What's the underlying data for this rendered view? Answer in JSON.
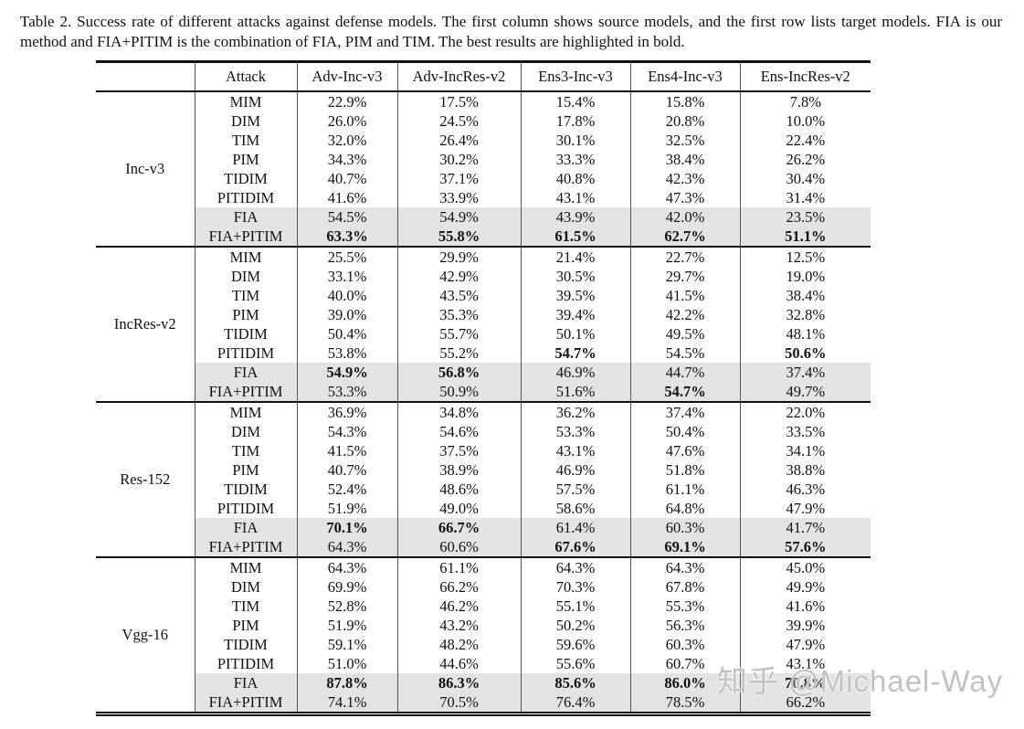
{
  "caption": "Table 2. Success rate of different attacks against defense models.  The first column shows source models, and the first row lists target models. FIA is our method and FIA+PITIM is the combination of FIA, PIM and TIM. The best results are highlighted in bold.",
  "watermark": "知乎 @Michael-Way",
  "colors": {
    "highlight_row": "#e3e3e3",
    "rule": "#111111",
    "text": "#111111",
    "watermark": "#bbbbbb"
  },
  "table": {
    "columns": [
      "",
      "Attack",
      "Adv-Inc-v3",
      "Adv-IncRes-v2",
      "Ens3-Inc-v3",
      "Ens4-Inc-v3",
      "Ens-IncRes-v2"
    ],
    "groups": [
      {
        "source": "Inc-v3",
        "rows": [
          {
            "attack": "MIM",
            "values": [
              "22.9%",
              "17.5%",
              "15.4%",
              "15.8%",
              "7.8%"
            ],
            "bold": [
              false,
              false,
              false,
              false,
              false
            ],
            "highlight": false
          },
          {
            "attack": "DIM",
            "values": [
              "26.0%",
              "24.5%",
              "17.8%",
              "20.8%",
              "10.0%"
            ],
            "bold": [
              false,
              false,
              false,
              false,
              false
            ],
            "highlight": false
          },
          {
            "attack": "TIM",
            "values": [
              "32.0%",
              "26.4%",
              "30.1%",
              "32.5%",
              "22.4%"
            ],
            "bold": [
              false,
              false,
              false,
              false,
              false
            ],
            "highlight": false
          },
          {
            "attack": "PIM",
            "values": [
              "34.3%",
              "30.2%",
              "33.3%",
              "38.4%",
              "26.2%"
            ],
            "bold": [
              false,
              false,
              false,
              false,
              false
            ],
            "highlight": false
          },
          {
            "attack": "TIDIM",
            "values": [
              "40.7%",
              "37.1%",
              "40.8%",
              "42.3%",
              "30.4%"
            ],
            "bold": [
              false,
              false,
              false,
              false,
              false
            ],
            "highlight": false
          },
          {
            "attack": "PITIDIM",
            "values": [
              "41.6%",
              "33.9%",
              "43.1%",
              "47.3%",
              "31.4%"
            ],
            "bold": [
              false,
              false,
              false,
              false,
              false
            ],
            "highlight": false
          },
          {
            "attack": "FIA",
            "values": [
              "54.5%",
              "54.9%",
              "43.9%",
              "42.0%",
              "23.5%"
            ],
            "bold": [
              false,
              false,
              false,
              false,
              false
            ],
            "highlight": true
          },
          {
            "attack": "FIA+PITIM",
            "values": [
              "63.3%",
              "55.8%",
              "61.5%",
              "62.7%",
              "51.1%"
            ],
            "bold": [
              true,
              true,
              true,
              true,
              true
            ],
            "highlight": true
          }
        ]
      },
      {
        "source": "IncRes-v2",
        "rows": [
          {
            "attack": "MIM",
            "values": [
              "25.5%",
              "29.9%",
              "21.4%",
              "22.7%",
              "12.5%"
            ],
            "bold": [
              false,
              false,
              false,
              false,
              false
            ],
            "highlight": false
          },
          {
            "attack": "DIM",
            "values": [
              "33.1%",
              "42.9%",
              "30.5%",
              "29.7%",
              "19.0%"
            ],
            "bold": [
              false,
              false,
              false,
              false,
              false
            ],
            "highlight": false
          },
          {
            "attack": "TIM",
            "values": [
              "40.0%",
              "43.5%",
              "39.5%",
              "41.5%",
              "38.4%"
            ],
            "bold": [
              false,
              false,
              false,
              false,
              false
            ],
            "highlight": false
          },
          {
            "attack": "PIM",
            "values": [
              "39.0%",
              "35.3%",
              "39.4%",
              "42.2%",
              "32.8%"
            ],
            "bold": [
              false,
              false,
              false,
              false,
              false
            ],
            "highlight": false
          },
          {
            "attack": "TIDIM",
            "values": [
              "50.4%",
              "55.7%",
              "50.1%",
              "49.5%",
              "48.1%"
            ],
            "bold": [
              false,
              false,
              false,
              false,
              false
            ],
            "highlight": false
          },
          {
            "attack": "PITIDIM",
            "values": [
              "53.8%",
              "55.2%",
              "54.7%",
              "54.5%",
              "50.6%"
            ],
            "bold": [
              false,
              false,
              true,
              false,
              true
            ],
            "highlight": false
          },
          {
            "attack": "FIA",
            "values": [
              "54.9%",
              "56.8%",
              "46.9%",
              "44.7%",
              "37.4%"
            ],
            "bold": [
              true,
              true,
              false,
              false,
              false
            ],
            "highlight": true
          },
          {
            "attack": "FIA+PITIM",
            "values": [
              "53.3%",
              "50.9%",
              "51.6%",
              "54.7%",
              "49.7%"
            ],
            "bold": [
              false,
              false,
              false,
              true,
              false
            ],
            "highlight": true
          }
        ]
      },
      {
        "source": "Res-152",
        "rows": [
          {
            "attack": "MIM",
            "values": [
              "36.9%",
              "34.8%",
              "36.2%",
              "37.4%",
              "22.0%"
            ],
            "bold": [
              false,
              false,
              false,
              false,
              false
            ],
            "highlight": false
          },
          {
            "attack": "DIM",
            "values": [
              "54.3%",
              "54.6%",
              "53.3%",
              "50.4%",
              "33.5%"
            ],
            "bold": [
              false,
              false,
              false,
              false,
              false
            ],
            "highlight": false
          },
          {
            "attack": "TIM",
            "values": [
              "41.5%",
              "37.5%",
              "43.1%",
              "47.6%",
              "34.1%"
            ],
            "bold": [
              false,
              false,
              false,
              false,
              false
            ],
            "highlight": false
          },
          {
            "attack": "PIM",
            "values": [
              "40.7%",
              "38.9%",
              "46.9%",
              "51.8%",
              "38.8%"
            ],
            "bold": [
              false,
              false,
              false,
              false,
              false
            ],
            "highlight": false
          },
          {
            "attack": "TIDIM",
            "values": [
              "52.4%",
              "48.6%",
              "57.5%",
              "61.1%",
              "46.3%"
            ],
            "bold": [
              false,
              false,
              false,
              false,
              false
            ],
            "highlight": false
          },
          {
            "attack": "PITIDIM",
            "values": [
              "51.9%",
              "49.0%",
              "58.6%",
              "64.8%",
              "47.9%"
            ],
            "bold": [
              false,
              false,
              false,
              false,
              false
            ],
            "highlight": false
          },
          {
            "attack": "FIA",
            "values": [
              "70.1%",
              "66.7%",
              "61.4%",
              "60.3%",
              "41.7%"
            ],
            "bold": [
              true,
              true,
              false,
              false,
              false
            ],
            "highlight": true
          },
          {
            "attack": "FIA+PITIM",
            "values": [
              "64.3%",
              "60.6%",
              "67.6%",
              "69.1%",
              "57.6%"
            ],
            "bold": [
              false,
              false,
              true,
              true,
              true
            ],
            "highlight": true
          }
        ]
      },
      {
        "source": "Vgg-16",
        "rows": [
          {
            "attack": "MIM",
            "values": [
              "64.3%",
              "61.1%",
              "64.3%",
              "64.3%",
              "45.0%"
            ],
            "bold": [
              false,
              false,
              false,
              false,
              false
            ],
            "highlight": false
          },
          {
            "attack": "DIM",
            "values": [
              "69.9%",
              "66.2%",
              "70.3%",
              "67.8%",
              "49.9%"
            ],
            "bold": [
              false,
              false,
              false,
              false,
              false
            ],
            "highlight": false
          },
          {
            "attack": "TIM",
            "values": [
              "52.8%",
              "46.2%",
              "55.1%",
              "55.3%",
              "41.6%"
            ],
            "bold": [
              false,
              false,
              false,
              false,
              false
            ],
            "highlight": false
          },
          {
            "attack": "PIM",
            "values": [
              "51.9%",
              "43.2%",
              "50.2%",
              "56.3%",
              "39.9%"
            ],
            "bold": [
              false,
              false,
              false,
              false,
              false
            ],
            "highlight": false
          },
          {
            "attack": "TIDIM",
            "values": [
              "59.1%",
              "48.2%",
              "59.6%",
              "60.3%",
              "47.9%"
            ],
            "bold": [
              false,
              false,
              false,
              false,
              false
            ],
            "highlight": false
          },
          {
            "attack": "PITIDIM",
            "values": [
              "51.0%",
              "44.6%",
              "55.6%",
              "60.7%",
              "43.1%"
            ],
            "bold": [
              false,
              false,
              false,
              false,
              false
            ],
            "highlight": false
          },
          {
            "attack": "FIA",
            "values": [
              "87.8%",
              "86.3%",
              "85.6%",
              "86.0%",
              "70.8%"
            ],
            "bold": [
              true,
              true,
              true,
              true,
              true
            ],
            "highlight": true
          },
          {
            "attack": "FIA+PITIM",
            "values": [
              "74.1%",
              "70.5%",
              "76.4%",
              "78.5%",
              "66.2%"
            ],
            "bold": [
              false,
              false,
              false,
              false,
              false
            ],
            "highlight": true
          }
        ]
      }
    ]
  }
}
